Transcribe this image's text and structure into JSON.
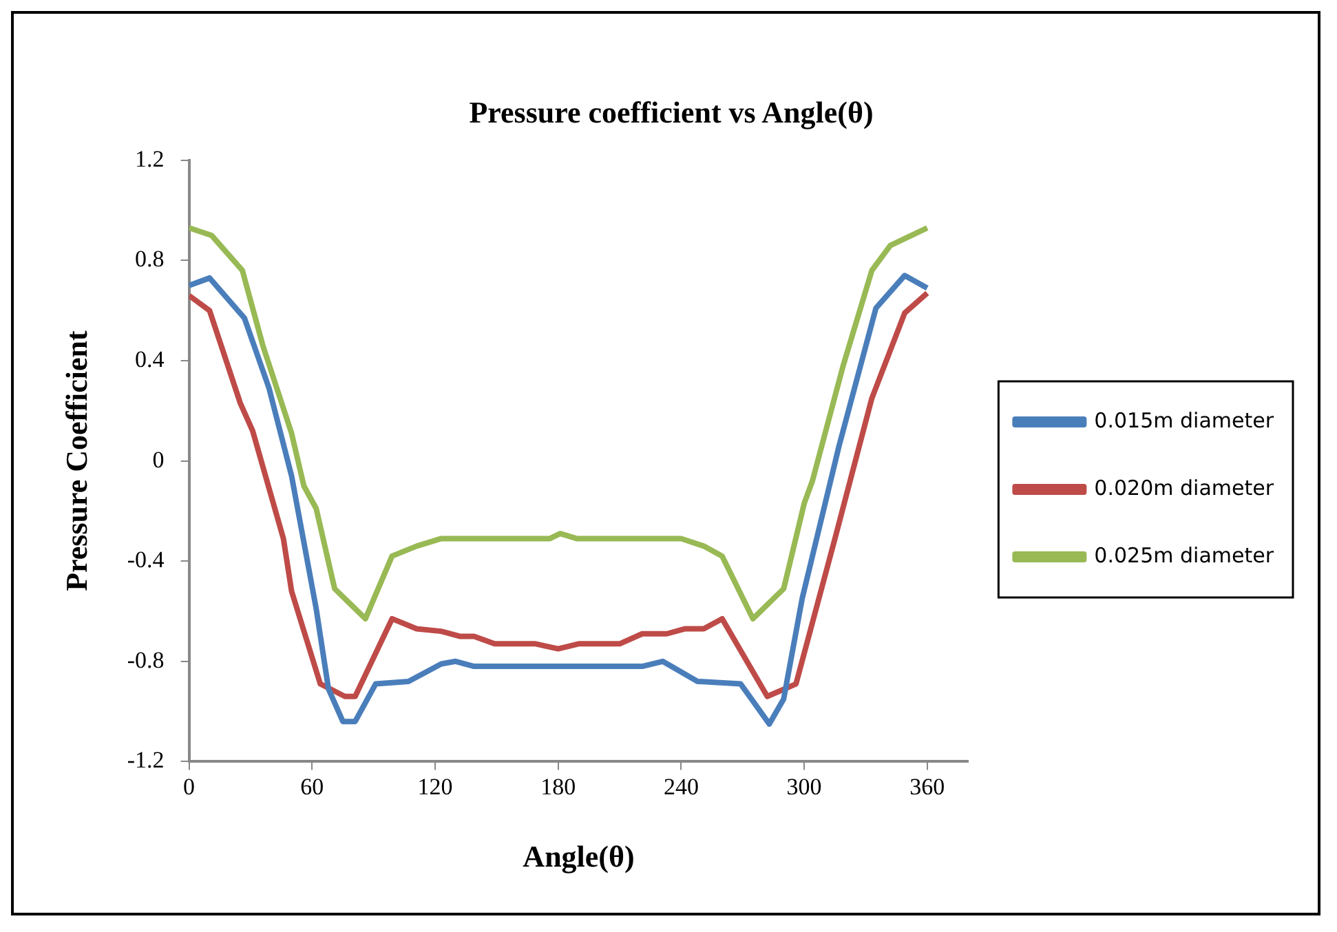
{
  "chart_data": {
    "type": "line",
    "title": "Pressure coefficient vs Angle(θ)",
    "xlabel": "Angle(θ)",
    "ylabel": "Pressure Coefficient",
    "xlim": [
      0,
      380
    ],
    "xticks": [
      0,
      60,
      120,
      180,
      240,
      300,
      360
    ],
    "ylim": [
      -1.2,
      1.2
    ],
    "yticks": [
      -1.2,
      -0.8,
      -0.4,
      0,
      0.4,
      0.8,
      1.2
    ],
    "grid": false,
    "legend": "right",
    "marker": "none",
    "line_style": "solid",
    "series": [
      {
        "name": "0.015m diameter",
        "color": "#4a7ebb",
        "x": [
          0,
          10,
          27,
          39,
          50,
          62,
          68,
          75,
          81,
          91,
          107,
          123,
          130,
          139,
          221,
          231,
          248,
          269,
          283,
          290,
          299,
          317,
          335,
          349,
          360
        ],
        "values": [
          0.7,
          0.73,
          0.57,
          0.29,
          -0.06,
          -0.59,
          -0.91,
          -1.04,
          -1.04,
          -0.89,
          -0.88,
          -0.81,
          -0.8,
          -0.82,
          -0.82,
          -0.8,
          -0.88,
          -0.89,
          -1.05,
          -0.95,
          -0.55,
          0.06,
          0.61,
          0.74,
          0.69
        ]
      },
      {
        "name": "0.020m diameter",
        "color": "#be4b48",
        "x": [
          0,
          10,
          25,
          31,
          46,
          50,
          64,
          76,
          81,
          99,
          111,
          123,
          132,
          139,
          149,
          169,
          180,
          190,
          210,
          221,
          233,
          242,
          251,
          260,
          282,
          296,
          315,
          333,
          349,
          360
        ],
        "values": [
          0.66,
          0.6,
          0.23,
          0.12,
          -0.31,
          -0.52,
          -0.89,
          -0.94,
          -0.94,
          -0.63,
          -0.67,
          -0.68,
          -0.7,
          -0.7,
          -0.73,
          -0.73,
          -0.75,
          -0.73,
          -0.73,
          -0.69,
          -0.69,
          -0.67,
          -0.67,
          -0.63,
          -0.94,
          -0.89,
          -0.31,
          0.25,
          0.59,
          0.67
        ]
      },
      {
        "name": "0.025m diameter",
        "color": "#98b954",
        "x": [
          0,
          11,
          26,
          36,
          50,
          56,
          62,
          71,
          86,
          99,
          111,
          123,
          126,
          176,
          181,
          189,
          240,
          251,
          260,
          275,
          290,
          300,
          304,
          319,
          333,
          342,
          360
        ],
        "values": [
          0.93,
          0.9,
          0.76,
          0.46,
          0.11,
          -0.1,
          -0.19,
          -0.51,
          -0.63,
          -0.38,
          -0.34,
          -0.31,
          -0.31,
          -0.31,
          -0.29,
          -0.31,
          -0.31,
          -0.34,
          -0.38,
          -0.63,
          -0.51,
          -0.17,
          -0.08,
          0.38,
          0.76,
          0.86,
          0.93
        ]
      }
    ]
  }
}
